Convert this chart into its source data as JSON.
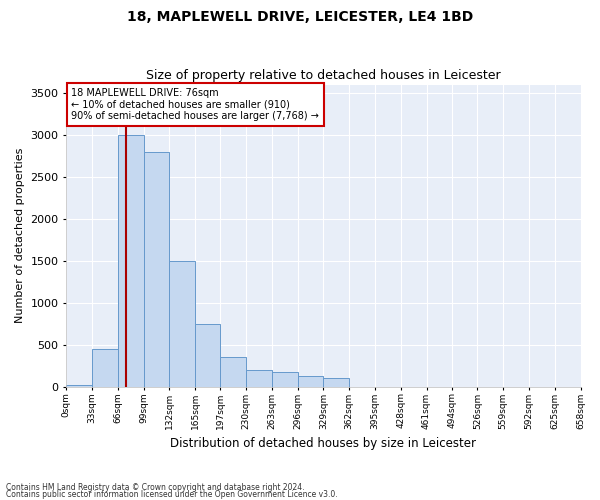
{
  "title1": "18, MAPLEWELL DRIVE, LEICESTER, LE4 1BD",
  "title2": "Size of property relative to detached houses in Leicester",
  "xlabel": "Distribution of detached houses by size in Leicester",
  "ylabel": "Number of detached properties",
  "annotation_line1": "18 MAPLEWELL DRIVE: 76sqm",
  "annotation_line2": "← 10% of detached houses are smaller (910)",
  "annotation_line3": "90% of semi-detached houses are larger (7,768) →",
  "footnote1": "Contains HM Land Registry data © Crown copyright and database right 2024.",
  "footnote2": "Contains public sector information licensed under the Open Government Licence v3.0.",
  "property_size": 76,
  "bin_edges": [
    0,
    33,
    66,
    99,
    132,
    165,
    197,
    230,
    263,
    296,
    329,
    362,
    395,
    428,
    461,
    494,
    526,
    559,
    592,
    625,
    658
  ],
  "bin_counts": [
    25,
    450,
    3000,
    2800,
    1500,
    750,
    350,
    200,
    175,
    130,
    100,
    0,
    0,
    0,
    0,
    0,
    0,
    0,
    0,
    0
  ],
  "bar_color": "#c5d8f0",
  "bar_edge_color": "#6699cc",
  "vline_color": "#aa0000",
  "annotation_box_color": "#cc0000",
  "fig_bg_color": "#ffffff",
  "plot_bg_color": "#e8eef8",
  "grid_color": "#ffffff",
  "ylim": [
    0,
    3600
  ],
  "yticks": [
    0,
    500,
    1000,
    1500,
    2000,
    2500,
    3000,
    3500
  ]
}
